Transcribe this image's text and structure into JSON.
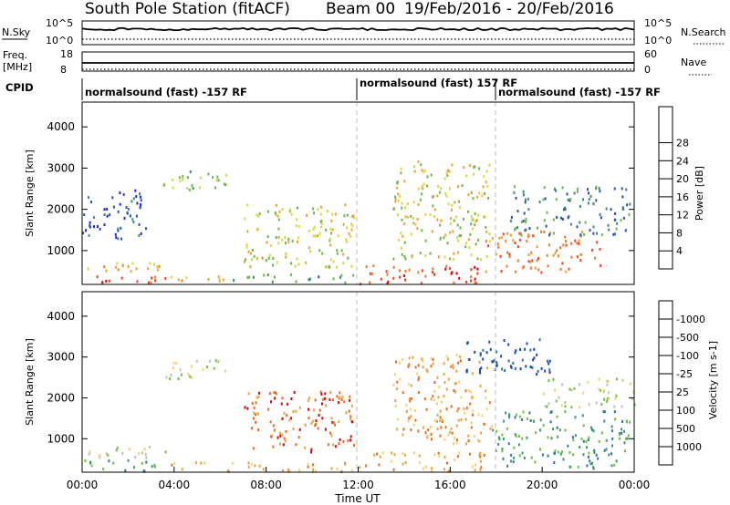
{
  "header": {
    "station": "South Pole Station (fitACF)",
    "beam": "Beam 00",
    "dates": "19/Feb/2016 - 20/Feb/2016"
  },
  "sky_panel": {
    "left_label": "N.Sky",
    "left_ticks": [
      "10^5",
      "10^0"
    ],
    "right_label": "N.Search",
    "right_ticks": [
      "10^5",
      "10^0"
    ]
  },
  "freq_panel": {
    "left_label_line1": "Freq.",
    "left_label_line2": "[MHz]",
    "left_ticks": [
      "18",
      "8"
    ],
    "right_label": "Nave",
    "right_ticks": [
      "60",
      "0"
    ]
  },
  "cpid": {
    "label": "CPID",
    "segments": [
      {
        "text": "normalsound (fast) -157 RF",
        "start_hour": 0
      },
      {
        "text": "normalsound (fast) 157 RF",
        "start_hour": 12
      },
      {
        "text": "normalsound (fast) -157 RF",
        "start_hour": 18.3
      }
    ]
  },
  "chart_data": [
    {
      "type": "heatmap",
      "ylabel": "Slant Range [km]",
      "yticks": [
        1000,
        2000,
        3000,
        4000
      ],
      "ylim": [
        180,
        4600
      ],
      "xlim": [
        0,
        24
      ],
      "colorbar": {
        "label": "Power [dB]",
        "ticks": [
          "4",
          "8",
          "12",
          "16",
          "20",
          "24",
          "28"
        ],
        "colors": [
          "#1f1fff",
          "#2850b8",
          "#3c8c78",
          "#6ab84a",
          "#d8d83a",
          "#f0a030",
          "#f07828",
          "#ff3c1c",
          "#e00000"
        ]
      },
      "echo_regions": [
        {
          "x0": 0.0,
          "x1": 3.6,
          "y0": 220,
          "y1": 420,
          "level": 7
        },
        {
          "x0": 0.2,
          "x1": 3.4,
          "y0": 500,
          "y1": 820,
          "level": 5
        },
        {
          "x0": 3.6,
          "x1": 6.5,
          "y0": 220,
          "y1": 400,
          "level": 5
        },
        {
          "x0": 3.5,
          "x1": 6.8,
          "y0": 2500,
          "y1": 2950,
          "level": 3
        },
        {
          "x0": 7.0,
          "x1": 11.8,
          "y0": 600,
          "y1": 2200,
          "level": 4
        },
        {
          "x0": 6.5,
          "x1": 11.8,
          "y0": 250,
          "y1": 450,
          "level": 2
        },
        {
          "x0": 12.0,
          "x1": 17.5,
          "y0": 220,
          "y1": 700,
          "level": 7
        },
        {
          "x0": 13.5,
          "x1": 17.8,
          "y0": 800,
          "y1": 3200,
          "level": 4
        },
        {
          "x0": 17.5,
          "x1": 22.5,
          "y0": 500,
          "y1": 1500,
          "level": 6
        },
        {
          "x0": 18.5,
          "x1": 23.8,
          "y0": 1400,
          "y1": 2600,
          "level": 2
        },
        {
          "x0": 0.0,
          "x1": 2.8,
          "y0": 1300,
          "y1": 2500,
          "level": 1
        }
      ]
    },
    {
      "type": "heatmap",
      "ylabel": "Slant Range [km]",
      "yticks": [
        1000,
        2000,
        3000,
        4000
      ],
      "ylim": [
        180,
        4600
      ],
      "xlim": [
        0,
        24
      ],
      "xticks": [
        "00:00",
        "04:00",
        "08:00",
        "12:00",
        "16:00",
        "20:00",
        "00:00"
      ],
      "xlabel": "Time UT",
      "colorbar": {
        "label": "Velocity [m s-1]",
        "ticks": [
          "1000",
          "500",
          "100",
          "25",
          "-25",
          "-100",
          "-500",
          "-1000"
        ],
        "colors": [
          "#1e46b4",
          "#2a78a0",
          "#3c9a6a",
          "#6ec23c",
          "#c0c0b4",
          "#f2d26c",
          "#f0a23a",
          "#f06a1a",
          "#e00000"
        ]
      },
      "echo_regions": [
        {
          "x0": 0.0,
          "x1": 3.6,
          "y0": 220,
          "y1": 500,
          "level": 2
        },
        {
          "x0": 0.1,
          "x1": 3.6,
          "y0": 550,
          "y1": 850,
          "level": 4
        },
        {
          "x0": 3.6,
          "x1": 6.6,
          "y0": 2500,
          "y1": 2950,
          "level": 4
        },
        {
          "x0": 3.6,
          "x1": 11.8,
          "y0": 220,
          "y1": 450,
          "level": 6
        },
        {
          "x0": 7.0,
          "x1": 11.8,
          "y0": 700,
          "y1": 2200,
          "level": 7
        },
        {
          "x0": 12.0,
          "x1": 17.5,
          "y0": 220,
          "y1": 700,
          "level": 6
        },
        {
          "x0": 13.5,
          "x1": 17.8,
          "y0": 900,
          "y1": 3100,
          "level": 6
        },
        {
          "x0": 17.8,
          "x1": 23.8,
          "y0": 300,
          "y1": 1700,
          "level": 2
        },
        {
          "x0": 16.5,
          "x1": 20.5,
          "y0": 2600,
          "y1": 3500,
          "level": 0
        },
        {
          "x0": 20.0,
          "x1": 24.0,
          "y0": 1800,
          "y1": 2500,
          "level": 4
        }
      ]
    }
  ]
}
